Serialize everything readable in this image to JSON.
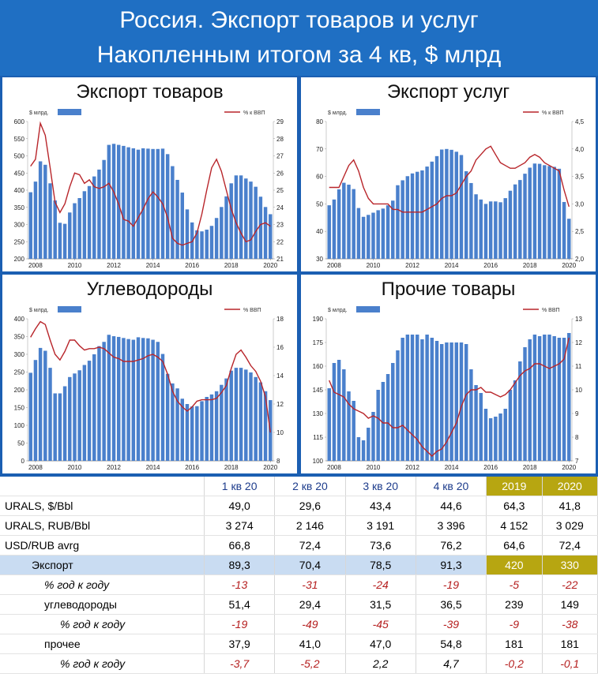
{
  "header": {
    "line1": "Россия. Экспорт товаров и услуг",
    "line2": "Накопленным итогом за 4 кв, $ млрд"
  },
  "colors": {
    "bars": "#4a80cc",
    "line": "#b8252a",
    "header_bg": "#1f6fc3",
    "highlight": "#b7a611",
    "export_row": "#c9dcf2"
  },
  "panels": {
    "goods": {
      "title": "Экспорт товаров"
    },
    "services": {
      "title": "Экспорт услуг"
    },
    "hydro": {
      "title": "Углеводороды"
    },
    "other": {
      "title": "Прочие товары"
    }
  },
  "chart_data": [
    {
      "type": "bar+line",
      "title": "Экспорт товаров",
      "legend": [
        "$ млрд.",
        "% к ВВП"
      ],
      "legend_placement": "top",
      "x_ticks": [
        "2008",
        "2010",
        "2012",
        "2014",
        "2016",
        "2018",
        "2020"
      ],
      "ylim": [
        200,
        600
      ],
      "y_ticks": [
        "200",
        "250",
        "300",
        "350",
        "400",
        "450",
        "500",
        "550",
        "600"
      ],
      "y2lim": [
        21,
        29
      ],
      "y2_ticks": [
        "21",
        "22",
        "23",
        "24",
        "25",
        "26",
        "27",
        "28",
        "29"
      ],
      "x_start": 2007.75,
      "x_step": 0.25,
      "bars": [
        394,
        425,
        484,
        474,
        420,
        370,
        305,
        302,
        335,
        362,
        377,
        397,
        412,
        440,
        460,
        488,
        532,
        535,
        532,
        529,
        525,
        522,
        518,
        522,
        521,
        520,
        520,
        521,
        505,
        470,
        430,
        393,
        344,
        306,
        283,
        280,
        285,
        296,
        319,
        351,
        382,
        420,
        443,
        443,
        434,
        425,
        410,
        381,
        351,
        330
      ],
      "line": [
        26.4,
        26.8,
        28.9,
        28.2,
        26.3,
        24.3,
        23.7,
        24.2,
        25.2,
        26.0,
        25.9,
        25.4,
        25.6,
        25.2,
        25.1,
        25.2,
        25.4,
        24.9,
        24.2,
        23.3,
        23.2,
        22.9,
        23.4,
        23.9,
        24.5,
        24.9,
        24.6,
        24.2,
        23.4,
        22.2,
        21.9,
        21.8,
        21.9,
        22.0,
        22.5,
        23.6,
        25.0,
        26.3,
        26.8,
        26.1,
        25.0,
        23.9,
        23.1,
        22.5,
        22.0,
        22.1,
        22.6,
        23.0,
        23.1,
        22.9
      ]
    },
    {
      "type": "bar+line",
      "title": "Экспорт услуг",
      "legend": [
        "$ млрд.",
        "% к ВВП"
      ],
      "legend_placement": "top",
      "x_ticks": [
        "2008",
        "2010",
        "2012",
        "2014",
        "2016",
        "2018",
        "2020"
      ],
      "ylim": [
        30,
        80
      ],
      "y_ticks": [
        "30",
        "40",
        "50",
        "60",
        "70",
        "80"
      ],
      "y2lim": [
        2.0,
        4.5
      ],
      "y2_ticks": [
        "2,0",
        "2,5",
        "3,0",
        "3,5",
        "4,0",
        "4,5"
      ],
      "x_start": 2007.75,
      "x_step": 0.25,
      "bars": [
        49.5,
        51.6,
        55.3,
        57.7,
        57.0,
        55.4,
        48.5,
        45.3,
        46.0,
        46.8,
        47.7,
        48.3,
        49.5,
        51.2,
        56.8,
        58.6,
        60.1,
        61.1,
        61.7,
        62.2,
        63.6,
        65.4,
        67.4,
        69.8,
        70.0,
        69.7,
        69.0,
        67.8,
        61.9,
        57.6,
        53.5,
        51.6,
        50.0,
        50.9,
        50.9,
        50.6,
        52.1,
        54.8,
        57.1,
        58.7,
        61.0,
        63.2,
        64.7,
        64.6,
        64.1,
        63.8,
        63.5,
        62.8,
        50.7,
        44.6
      ],
      "line": [
        3.3,
        3.3,
        3.3,
        3.5,
        3.7,
        3.8,
        3.6,
        3.3,
        3.1,
        3.0,
        3.0,
        3.0,
        3.0,
        2.9,
        2.9,
        2.85,
        2.85,
        2.85,
        2.85,
        2.85,
        2.9,
        2.95,
        3.0,
        3.1,
        3.15,
        3.15,
        3.2,
        3.35,
        3.5,
        3.6,
        3.8,
        3.9,
        4.0,
        4.05,
        3.9,
        3.75,
        3.7,
        3.65,
        3.65,
        3.7,
        3.75,
        3.85,
        3.9,
        3.85,
        3.75,
        3.7,
        3.65,
        3.6,
        3.25,
        2.95
      ]
    },
    {
      "type": "bar+line",
      "title": "Углеводороды",
      "legend": [
        "$ млрд.",
        "% ВВП"
      ],
      "legend_placement": "top",
      "x_ticks": [
        "2008",
        "2010",
        "2012",
        "2014",
        "2016",
        "2018",
        "2020"
      ],
      "ylim": [
        0,
        400
      ],
      "y_ticks": [
        "0",
        "50",
        "100",
        "150",
        "200",
        "250",
        "300",
        "350",
        "400"
      ],
      "y2lim": [
        8,
        18
      ],
      "y2_ticks": [
        "8",
        "10",
        "12",
        "14",
        "16",
        "18"
      ],
      "x_start": 2007.75,
      "x_step": 0.25,
      "bars": [
        248,
        284,
        318,
        310,
        262,
        190,
        190,
        210,
        236,
        246,
        255,
        270,
        282,
        300,
        323,
        335,
        355,
        351,
        349,
        346,
        343,
        341,
        348,
        346,
        345,
        341,
        335,
        301,
        245,
        218,
        204,
        175,
        160,
        153,
        154,
        168,
        180,
        187,
        196,
        214,
        232,
        254,
        262,
        262,
        257,
        249,
        236,
        221,
        196,
        171
      ],
      "line": [
        16.7,
        17.3,
        17.8,
        17.6,
        16.5,
        15.5,
        15.1,
        15.7,
        16.5,
        16.5,
        16.1,
        15.8,
        15.9,
        15.9,
        16.0,
        15.9,
        15.6,
        15.3,
        15.2,
        15.0,
        15.0,
        15.0,
        15.1,
        15.2,
        15.4,
        15.5,
        15.3,
        15.0,
        14.1,
        12.9,
        12.2,
        11.8,
        11.5,
        11.8,
        12.2,
        12.3,
        12.3,
        12.3,
        12.4,
        12.8,
        13.3,
        14.5,
        15.5,
        15.8,
        15.3,
        14.7,
        14.3,
        13.6,
        12.5,
        10.0
      ]
    },
    {
      "type": "bar+line",
      "title": "Прочие товары",
      "legend": [
        "$ млрд.",
        "% ВВП"
      ],
      "legend_placement": "top",
      "x_ticks": [
        "2008",
        "2010",
        "2012",
        "2014",
        "2016",
        "2018",
        "2020"
      ],
      "ylim": [
        100,
        190
      ],
      "y_ticks": [
        "100",
        "115",
        "130",
        "145",
        "160",
        "175",
        "190"
      ],
      "y2lim": [
        7,
        13
      ],
      "y2_ticks": [
        "7",
        "8",
        "9",
        "10",
        "11",
        "12",
        "13"
      ],
      "x_start": 2007.75,
      "x_step": 0.25,
      "bars": [
        146,
        162,
        164,
        158,
        144,
        138,
        115,
        113,
        121,
        131,
        145,
        150,
        155,
        162,
        170,
        178,
        180,
        180,
        180,
        177,
        180,
        178,
        176,
        174,
        175,
        175,
        175,
        175,
        174,
        158,
        148,
        143,
        133,
        127,
        128,
        130,
        133,
        145,
        151,
        163,
        172,
        177,
        180,
        179,
        180,
        180,
        179,
        178,
        178,
        181
      ],
      "line": [
        10.4,
        9.9,
        9.8,
        9.7,
        9.4,
        9.2,
        9.1,
        9.0,
        8.8,
        8.9,
        8.8,
        8.6,
        8.6,
        8.4,
        8.4,
        8.5,
        8.3,
        8.1,
        7.9,
        7.6,
        7.4,
        7.2,
        7.4,
        7.5,
        7.8,
        8.2,
        8.6,
        9.3,
        9.8,
        10.0,
        10.0,
        10.1,
        9.9,
        9.9,
        9.8,
        9.7,
        9.8,
        10.0,
        10.3,
        10.6,
        10.8,
        10.9,
        11.1,
        11.1,
        11.0,
        10.9,
        11.0,
        11.1,
        11.3,
        12.2
      ]
    }
  ],
  "table": {
    "headers": [
      "",
      "1 кв 20",
      "2 кв 20",
      "3 кв 20",
      "4 кв 20",
      "2019",
      "2020"
    ],
    "rows": [
      {
        "label": "URALS, $/Bbl",
        "values": [
          "49,0",
          "29,6",
          "43,4",
          "44,6",
          "64,3",
          "41,8"
        ],
        "style": "plain"
      },
      {
        "label": "URALS, RUB/Bbl",
        "values": [
          "3 274",
          "2 146",
          "3 191",
          "3 396",
          "4 152",
          "3 029"
        ],
        "style": "plain"
      },
      {
        "label": "USD/RUB avrg",
        "values": [
          "66,8",
          "72,4",
          "73,6",
          "76,2",
          "64,6",
          "72,4"
        ],
        "style": "plain"
      },
      {
        "label": "Экспорт",
        "values": [
          "89,3",
          "70,4",
          "78,5",
          "91,3",
          "420",
          "330"
        ],
        "style": "export"
      },
      {
        "label": "% год к году",
        "values": [
          "-13",
          "-31",
          "-24",
          "-19",
          "-5",
          "-22"
        ],
        "style": "yoy"
      },
      {
        "label": "углеводороды",
        "values": [
          "51,4",
          "29,4",
          "31,5",
          "36,5",
          "239",
          "149"
        ],
        "style": "sub"
      },
      {
        "label": "% год к году",
        "values": [
          "-19",
          "-49",
          "-45",
          "-39",
          "-9",
          "-38"
        ],
        "style": "yoy2"
      },
      {
        "label": "прочее",
        "values": [
          "37,9",
          "41,0",
          "47,0",
          "54,8",
          "181",
          "181"
        ],
        "style": "sub"
      },
      {
        "label": "% год к году",
        "values": [
          "-3,7",
          "-5,2",
          "2,2",
          "4,7",
          "-0,2",
          "-0,1"
        ],
        "style": "yoy3"
      }
    ]
  }
}
